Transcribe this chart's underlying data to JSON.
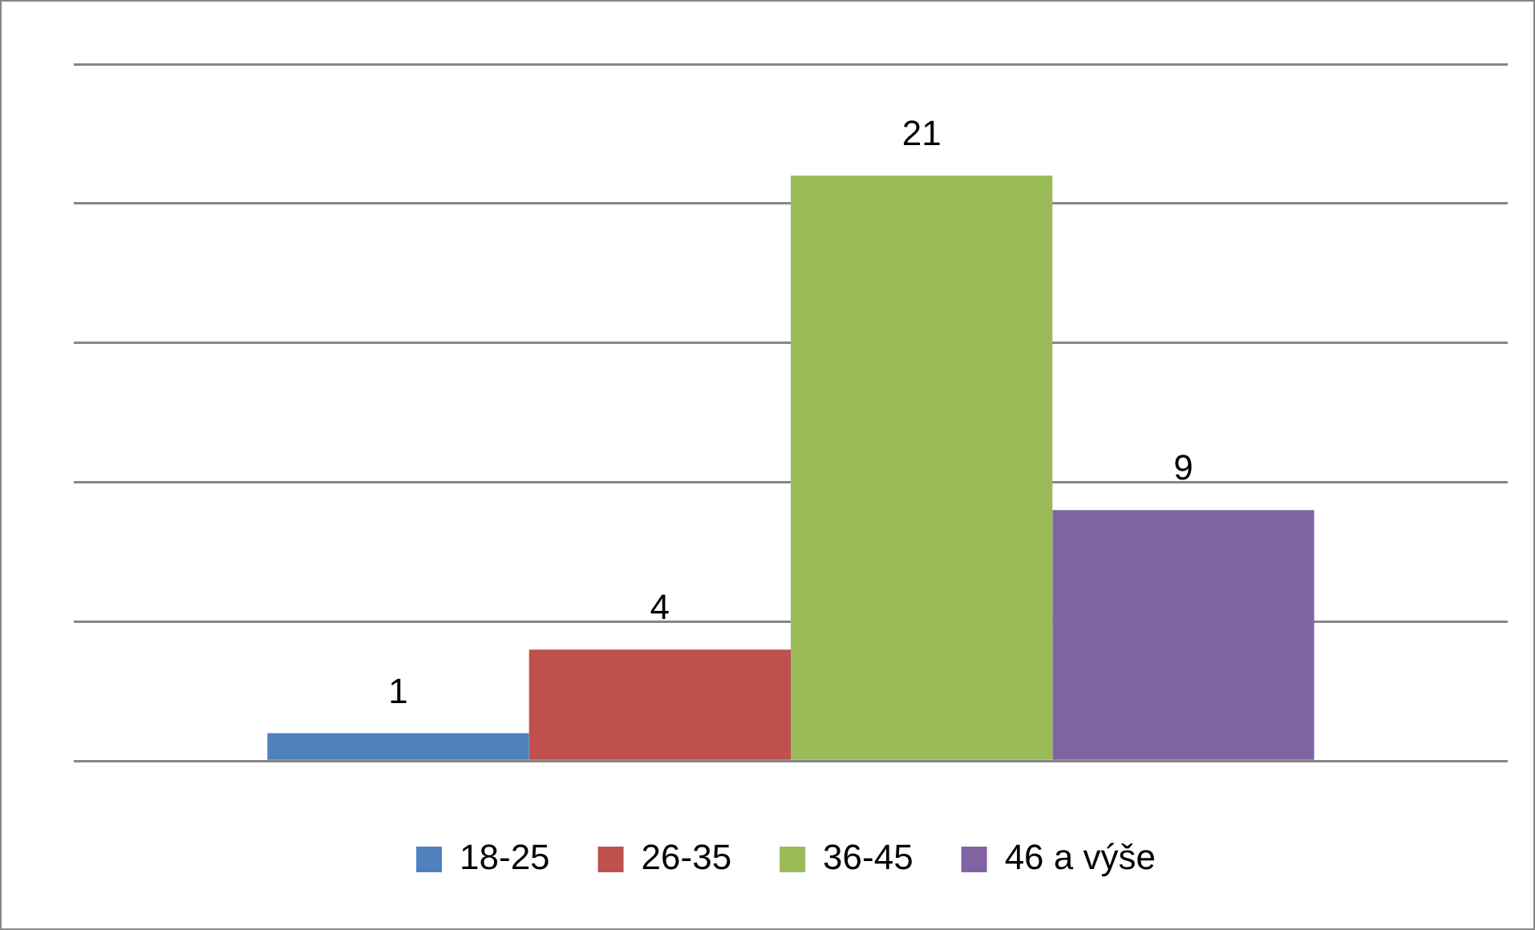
{
  "chart_data": {
    "type": "bar",
    "categories": [
      null
    ],
    "series": [
      {
        "name": "18-25",
        "color": "#4f81bd",
        "values": [
          1
        ]
      },
      {
        "name": "26-35",
        "color": "#c0504d",
        "values": [
          4
        ]
      },
      {
        "name": "36-45",
        "color": "#9bbb59",
        "values": [
          21
        ]
      },
      {
        "name": "46 a výše",
        "color": "#8064a2",
        "values": [
          9
        ]
      }
    ],
    "ylim": [
      0,
      25
    ],
    "yticks": [
      {
        "value": 0,
        "label": null
      },
      {
        "value": 5,
        "label": null
      },
      {
        "value": 10,
        "label": null
      },
      {
        "value": 15,
        "label": null
      },
      {
        "value": 20,
        "label": null
      },
      {
        "value": 25,
        "label": null
      }
    ],
    "grid": "y",
    "legend": "bottom",
    "data_labels": true
  }
}
